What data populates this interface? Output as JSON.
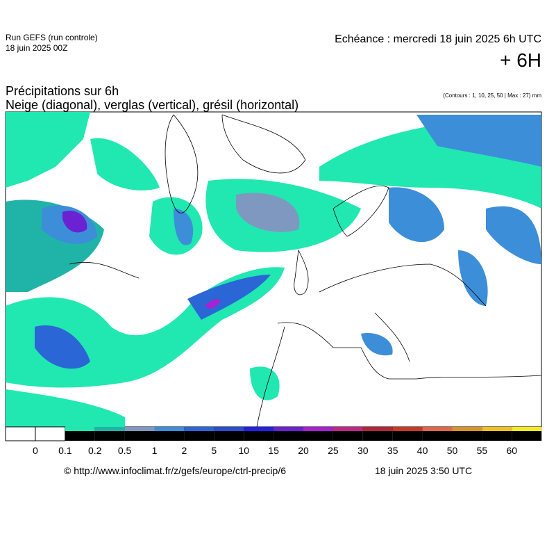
{
  "header": {
    "run": "Run GEFS (run controle)",
    "run_date": "18 juin 2025 00Z",
    "echeance": "Echéance : mercredi 18 juin 2025 6h UTC",
    "lead": "+ 6H"
  },
  "title": {
    "line1": "Précipitations sur 6h",
    "line2": "Neige (diagonal), verglas (vertical), grésil (horizontal)",
    "contours": "(Contours : 1, 10, 25, 50 | Max : 27) mm"
  },
  "legend": {
    "labels": [
      "0",
      "0.1",
      "0.2",
      "0.5",
      "1",
      "2",
      "5",
      "10",
      "15",
      "20",
      "25",
      "30",
      "35",
      "40",
      "50",
      "55",
      "60"
    ],
    "colors": [
      "#20e8b0",
      "#20b4a8",
      "#7f98c0",
      "#3c8ed8",
      "#2a66d6",
      "#2a4ecc",
      "#2222e0",
      "#6a22d2",
      "#a822d0",
      "#c02888",
      "#b02838",
      "#c83a28",
      "#e06848",
      "#d89428",
      "#f0c020",
      "#f4ec20"
    ]
  },
  "footer": {
    "url": "© http://www.infoclimat.fr/z/gefs/europe/ctrl-precip/6",
    "date": "18 juin 2025  3:50 UTC"
  }
}
